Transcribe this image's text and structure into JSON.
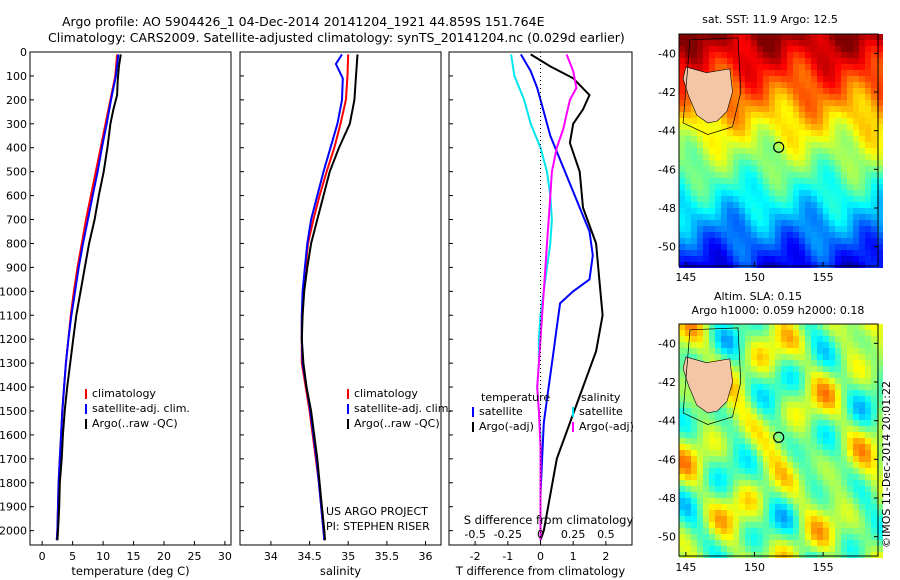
{
  "header": {
    "line1": "Argo profile: AO 5904426_1 04-Dec-2014 20141204_1921 44.859S 151.764E",
    "line2": "Climatology: CARS2009. Satellite-adjusted climatology: synTS_20141204.nc (0.029d earlier)"
  },
  "colors": {
    "climatology": "#ff0000",
    "satellite": "#0000ff",
    "argo": "#000000",
    "sat_salinity": "#00e5ee",
    "argo_salinity_adj": "#ff00ff",
    "land": "#f5c6a5"
  },
  "chart_data": [
    {
      "type": "line",
      "panel": "temperature",
      "xlabel": "temperature (deg C)",
      "x_ticks": [
        0,
        5,
        10,
        15,
        20,
        25,
        30
      ],
      "xlim": [
        -2,
        31
      ],
      "y_ticks": [
        0,
        100,
        200,
        300,
        400,
        500,
        600,
        700,
        800,
        900,
        1000,
        1100,
        1200,
        1300,
        1400,
        1500,
        1600,
        1700,
        1800,
        1900,
        2000
      ],
      "ylim": [
        0,
        2060
      ],
      "y_inverted": true,
      "legend": [
        "climatology",
        "satellite-adj. clim.",
        "Argo(..raw -QC)"
      ],
      "series": [
        {
          "name": "climatology",
          "color": "#ff0000",
          "points": [
            [
              12.3,
              10
            ],
            [
              12.0,
              100
            ],
            [
              11.2,
              200
            ],
            [
              10.4,
              300
            ],
            [
              9.6,
              400
            ],
            [
              8.8,
              500
            ],
            [
              8.0,
              600
            ],
            [
              7.2,
              700
            ],
            [
              6.5,
              800
            ],
            [
              5.8,
              900
            ],
            [
              5.2,
              1000
            ],
            [
              4.7,
              1100
            ],
            [
              4.3,
              1200
            ],
            [
              3.9,
              1300
            ],
            [
              3.6,
              1400
            ],
            [
              3.3,
              1500
            ],
            [
              3.1,
              1600
            ],
            [
              2.9,
              1700
            ],
            [
              2.7,
              1800
            ],
            [
              2.6,
              1900
            ],
            [
              2.5,
              2000
            ],
            [
              2.4,
              2040
            ]
          ]
        },
        {
          "name": "satellite-adj. clim.",
          "color": "#0000ff",
          "points": [
            [
              12.5,
              10
            ],
            [
              12.1,
              100
            ],
            [
              11.3,
              200
            ],
            [
              10.6,
              300
            ],
            [
              9.8,
              400
            ],
            [
              9.1,
              500
            ],
            [
              8.3,
              600
            ],
            [
              7.5,
              700
            ],
            [
              6.7,
              800
            ],
            [
              6.0,
              900
            ],
            [
              5.4,
              1000
            ],
            [
              4.8,
              1100
            ],
            [
              4.3,
              1200
            ],
            [
              3.9,
              1300
            ],
            [
              3.6,
              1400
            ],
            [
              3.3,
              1500
            ],
            [
              3.1,
              1600
            ],
            [
              2.9,
              1700
            ],
            [
              2.7,
              1800
            ],
            [
              2.6,
              1900
            ],
            [
              2.5,
              2000
            ],
            [
              2.4,
              2040
            ]
          ]
        },
        {
          "name": "Argo(..raw -QC)",
          "color": "#000000",
          "points": [
            [
              12.9,
              10
            ],
            [
              12.6,
              60
            ],
            [
              12.4,
              120
            ],
            [
              12.3,
              180
            ],
            [
              11.7,
              240
            ],
            [
              11.2,
              300
            ],
            [
              10.7,
              400
            ],
            [
              10.1,
              500
            ],
            [
              9.3,
              600
            ],
            [
              8.6,
              700
            ],
            [
              7.7,
              800
            ],
            [
              7.0,
              900
            ],
            [
              6.3,
              1000
            ],
            [
              5.6,
              1100
            ],
            [
              5.1,
              1200
            ],
            [
              4.6,
              1300
            ],
            [
              4.1,
              1400
            ],
            [
              3.7,
              1500
            ],
            [
              3.4,
              1600
            ],
            [
              3.2,
              1700
            ],
            [
              2.9,
              1800
            ],
            [
              2.8,
              1900
            ],
            [
              2.6,
              2000
            ],
            [
              2.5,
              2040
            ]
          ]
        }
      ]
    },
    {
      "type": "line",
      "panel": "salinity",
      "xlabel": "salinity",
      "x_ticks": [
        34,
        34.5,
        35,
        35.5,
        36
      ],
      "x_tick_labels": [
        "34",
        "34.5",
        "35",
        "35.5",
        "36"
      ],
      "xlim": [
        33.6,
        36.2
      ],
      "ylim": [
        0,
        2060
      ],
      "y_inverted": true,
      "legend": [
        "climatology",
        "satellite-adj. clim.",
        "Argo(..raw -QC)"
      ],
      "annotations": [
        "US ARGO PROJECT",
        "PI: STEPHEN RISER"
      ],
      "series": [
        {
          "name": "climatology",
          "color": "#ff0000",
          "points": [
            [
              35.0,
              10
            ],
            [
              34.99,
              100
            ],
            [
              34.97,
              200
            ],
            [
              34.9,
              300
            ],
            [
              34.82,
              400
            ],
            [
              34.72,
              500
            ],
            [
              34.63,
              600
            ],
            [
              34.55,
              700
            ],
            [
              34.48,
              800
            ],
            [
              34.45,
              900
            ],
            [
              34.42,
              1000
            ],
            [
              34.4,
              1100
            ],
            [
              34.4,
              1200
            ],
            [
              34.4,
              1300
            ],
            [
              34.45,
              1400
            ],
            [
              34.5,
              1500
            ],
            [
              34.54,
              1600
            ],
            [
              34.58,
              1700
            ],
            [
              34.62,
              1800
            ],
            [
              34.65,
              1900
            ],
            [
              34.68,
              2000
            ],
            [
              34.69,
              2040
            ]
          ]
        },
        {
          "name": "satellite-adj. clim.",
          "color": "#0000ff",
          "points": [
            [
              34.92,
              10
            ],
            [
              34.84,
              50
            ],
            [
              34.93,
              110
            ],
            [
              34.92,
              200
            ],
            [
              34.86,
              300
            ],
            [
              34.77,
              400
            ],
            [
              34.68,
              500
            ],
            [
              34.6,
              600
            ],
            [
              34.52,
              700
            ],
            [
              34.47,
              800
            ],
            [
              34.44,
              900
            ],
            [
              34.41,
              1000
            ],
            [
              34.4,
              1100
            ],
            [
              34.4,
              1200
            ],
            [
              34.41,
              1300
            ],
            [
              34.46,
              1400
            ],
            [
              34.51,
              1500
            ],
            [
              34.55,
              1600
            ],
            [
              34.59,
              1700
            ],
            [
              34.62,
              1800
            ],
            [
              34.65,
              1900
            ],
            [
              34.68,
              2000
            ],
            [
              34.69,
              2040
            ]
          ]
        },
        {
          "name": "Argo(..raw -QC)",
          "color": "#000000",
          "points": [
            [
              35.12,
              10
            ],
            [
              35.1,
              100
            ],
            [
              35.08,
              200
            ],
            [
              35.02,
              300
            ],
            [
              34.88,
              400
            ],
            [
              34.76,
              500
            ],
            [
              34.68,
              600
            ],
            [
              34.6,
              700
            ],
            [
              34.52,
              800
            ],
            [
              34.47,
              900
            ],
            [
              34.43,
              1000
            ],
            [
              34.41,
              1100
            ],
            [
              34.4,
              1200
            ],
            [
              34.42,
              1300
            ],
            [
              34.46,
              1400
            ],
            [
              34.52,
              1500
            ],
            [
              34.56,
              1600
            ],
            [
              34.6,
              1700
            ],
            [
              34.63,
              1800
            ],
            [
              34.66,
              1900
            ],
            [
              34.69,
              2000
            ],
            [
              34.7,
              2040
            ]
          ]
        }
      ]
    },
    {
      "type": "line",
      "panel": "difference",
      "xlabel": "T difference from climatology",
      "xlabel_top": "S difference from climatology",
      "x_ticks": [
        -2,
        -1,
        0,
        1,
        2
      ],
      "s_ticks": [
        -0.5,
        -0.25,
        0,
        0.25,
        0.5
      ],
      "s_tick_labels": [
        "-0.5",
        "-0.25",
        "0",
        "0.25",
        "0.5"
      ],
      "xlim": [
        -2.8,
        2.8
      ],
      "ylim": [
        0,
        2060
      ],
      "y_inverted": true,
      "legend_temperature_title": "temperature",
      "legend_salinity_title": "salinity",
      "legend_temperature": [
        "satellite",
        "Argo(-adj)"
      ],
      "legend_salinity": [
        "satellite",
        "Argo(-adj)"
      ],
      "series": [
        {
          "name": "temperature satellite",
          "color": "#0000ff",
          "points": [
            [
              -0.6,
              10
            ],
            [
              -0.3,
              80
            ],
            [
              -0.1,
              150
            ],
            [
              0.1,
              250
            ],
            [
              0.3,
              350
            ],
            [
              0.6,
              450
            ],
            [
              0.9,
              550
            ],
            [
              1.2,
              650
            ],
            [
              1.5,
              750
            ],
            [
              1.6,
              850
            ],
            [
              1.5,
              950
            ],
            [
              1.0,
              1000
            ],
            [
              0.6,
              1050
            ],
            [
              0.5,
              1150
            ],
            [
              0.4,
              1250
            ],
            [
              0.3,
              1350
            ],
            [
              0.2,
              1450
            ],
            [
              0.1,
              1550
            ],
            [
              0.05,
              1700
            ],
            [
              0.0,
              1850
            ],
            [
              0.0,
              2040
            ]
          ]
        },
        {
          "name": "temperature Argo(-adj)",
          "color": "#000000",
          "points": [
            [
              -0.3,
              10
            ],
            [
              0.3,
              60
            ],
            [
              1.0,
              110
            ],
            [
              1.5,
              180
            ],
            [
              1.3,
              240
            ],
            [
              1.0,
              300
            ],
            [
              0.9,
              380
            ],
            [
              1.2,
              500
            ],
            [
              1.3,
              650
            ],
            [
              1.7,
              800
            ],
            [
              1.8,
              950
            ],
            [
              1.9,
              1100
            ],
            [
              1.7,
              1250
            ],
            [
              1.3,
              1400
            ],
            [
              0.9,
              1550
            ],
            [
              0.5,
              1700
            ],
            [
              0.3,
              1850
            ],
            [
              0.1,
              2000
            ],
            [
              0.0,
              2040
            ]
          ]
        },
        {
          "name": "salinity satellite",
          "color": "#00e5ee",
          "points": [
            [
              -0.9,
              10
            ],
            [
              -0.8,
              100
            ],
            [
              -0.5,
              200
            ],
            [
              -0.3,
              300
            ],
            [
              0.0,
              400
            ],
            [
              0.2,
              500
            ],
            [
              0.3,
              600
            ],
            [
              0.35,
              700
            ],
            [
              0.3,
              800
            ],
            [
              0.2,
              900
            ],
            [
              0.1,
              1000
            ],
            [
              0.0,
              1100
            ],
            [
              -0.05,
              1200
            ],
            [
              -0.05,
              1300
            ],
            [
              -0.1,
              1400
            ],
            [
              -0.05,
              1500
            ],
            [
              0.0,
              1600
            ],
            [
              0.0,
              1750
            ],
            [
              0.0,
              1900
            ],
            [
              0.0,
              2040
            ]
          ]
        },
        {
          "name": "salinity Argo(-adj)",
          "color": "#ff00ff",
          "points": [
            [
              0.8,
              10
            ],
            [
              1.0,
              80
            ],
            [
              1.1,
              150
            ],
            [
              0.9,
              200
            ],
            [
              0.8,
              260
            ],
            [
              0.7,
              320
            ],
            [
              0.5,
              400
            ],
            [
              0.35,
              500
            ],
            [
              0.3,
              600
            ],
            [
              0.25,
              700
            ],
            [
              0.2,
              800
            ],
            [
              0.15,
              900
            ],
            [
              0.1,
              1000
            ],
            [
              0.05,
              1100
            ],
            [
              0.0,
              1200
            ],
            [
              -0.05,
              1300
            ],
            [
              -0.1,
              1400
            ],
            [
              -0.05,
              1500
            ],
            [
              0.0,
              1650
            ],
            [
              0.0,
              1800
            ],
            [
              0.0,
              1950
            ],
            [
              0.0,
              2040
            ]
          ]
        }
      ]
    },
    {
      "type": "heatmap",
      "panel": "sst_map",
      "title": "sat. SST: 11.9 Argo: 12.5",
      "x_ticks": [
        145,
        150,
        155
      ],
      "xlim": [
        144.5,
        159
      ],
      "y_ticks": [
        -40,
        -42,
        -44,
        -46,
        -48,
        -50
      ],
      "ylim": [
        -51,
        -39
      ],
      "colormap": "jet",
      "marker": {
        "lon": 151.764,
        "lat": -44.859
      }
    },
    {
      "type": "heatmap",
      "panel": "sla_map",
      "title": "Altim. SLA: 0.15",
      "subtitle": "Argo h1000: 0.059 h2000: 0.18",
      "x_ticks": [
        145,
        150,
        155
      ],
      "xlim": [
        144.5,
        159
      ],
      "y_ticks": [
        -40,
        -42,
        -44,
        -46,
        -48,
        -50
      ],
      "ylim": [
        -51,
        -39
      ],
      "colormap": "jet",
      "marker": {
        "lon": 151.764,
        "lat": -44.859
      }
    }
  ],
  "stamp": "©IMOS 11-Dec-2014 20:01:22"
}
